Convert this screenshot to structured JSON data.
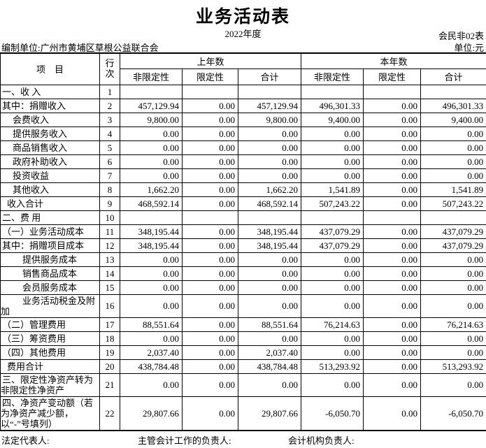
{
  "header": {
    "title": "业务活动表",
    "period": "2022年度",
    "form_code": "会民非02表",
    "prepared_by": "编制单位:广州市黄埔区草根公益联合会",
    "unit": "单位:元"
  },
  "table": {
    "col_headers": {
      "item": "项　目",
      "line_no": "行次",
      "prev_year": "上年数",
      "current_year": "本年数",
      "unrestricted": "非限定性",
      "restricted": "限定性",
      "total": "合计"
    },
    "rows": [
      {
        "item": "一、收 入",
        "line": "1",
        "indent": 0,
        "values": [
          "",
          "",
          "",
          "",
          "",
          ""
        ]
      },
      {
        "item": "其中：捐赠收入",
        "line": "2",
        "indent": 0,
        "values": [
          "457,129.94",
          "0.00",
          "457,129.94",
          "496,301.33",
          "0.00",
          "496,301.33"
        ]
      },
      {
        "item": "会费收入",
        "line": "3",
        "indent": 2,
        "values": [
          "9,800.00",
          "0.00",
          "9,800.00",
          "9,400.00",
          "0.00",
          "9,400.00"
        ]
      },
      {
        "item": "提供服务收入",
        "line": "4",
        "indent": 2,
        "values": [
          "0.00",
          "0.00",
          "0.00",
          "0.00",
          "0.00",
          "0.00"
        ]
      },
      {
        "item": "商品销售收入",
        "line": "5",
        "indent": 2,
        "values": [
          "0.00",
          "0.00",
          "0.00",
          "0.00",
          "0.00",
          "0.00"
        ]
      },
      {
        "item": "政府补助收入",
        "line": "6",
        "indent": 2,
        "values": [
          "0.00",
          "0.00",
          "0.00",
          "0.00",
          "0.00",
          "0.00"
        ]
      },
      {
        "item": "投资收益",
        "line": "7",
        "indent": 2,
        "values": [
          "0.00",
          "0.00",
          "0.00",
          "0.00",
          "0.00",
          "0.00"
        ]
      },
      {
        "item": "其他收入",
        "line": "8",
        "indent": 2,
        "values": [
          "1,662.20",
          "0.00",
          "1,662.20",
          "1,541.89",
          "0.00",
          "1,541.89"
        ]
      },
      {
        "item": "收入合计",
        "line": "9",
        "indent": 1,
        "values": [
          "468,592.14",
          "0.00",
          "468,592.14",
          "507,243.22",
          "0.00",
          "507,243.22"
        ]
      },
      {
        "item": "二、费 用",
        "line": "10",
        "indent": 0,
        "values": [
          "",
          "",
          "",
          "",
          "",
          ""
        ]
      },
      {
        "item": "（一）业务活动成本",
        "line": "11",
        "indent": 0,
        "values": [
          "348,195.44",
          "0.00",
          "348,195.44",
          "437,079.29",
          "0.00",
          "437,079.29"
        ]
      },
      {
        "item": "其中：捐赠项目成本",
        "line": "12",
        "indent": 0,
        "values": [
          "348,195.44",
          "0.00",
          "348,195.44",
          "437,079.29",
          "0.00",
          "437,079.29"
        ]
      },
      {
        "item": "提供服务成本",
        "line": "13",
        "indent": 3,
        "values": [
          "0.00",
          "0.00",
          "0.00",
          "0.00",
          "0.00",
          "0.00"
        ]
      },
      {
        "item": "销售商品成本",
        "line": "14",
        "indent": 3,
        "values": [
          "0.00",
          "0.00",
          "0.00",
          "0.00",
          "0.00",
          "0.00"
        ]
      },
      {
        "item": "会员服务成本",
        "line": "15",
        "indent": 3,
        "values": [
          "0.00",
          "0.00",
          "0.00",
          "0.00",
          "0.00",
          "0.00"
        ]
      },
      {
        "item": "业务活动税金及附加",
        "line": "16",
        "indent": 3,
        "values": [
          "0.00",
          "0.00",
          "0.00",
          "0.00",
          "0.00",
          "0.00"
        ]
      },
      {
        "item": "（二）管理费用",
        "line": "17",
        "indent": 0,
        "values": [
          "88,551.64",
          "0.00",
          "88,551.64",
          "76,214.63",
          "0.00",
          "76,214.63"
        ]
      },
      {
        "item": "（三）筹资费用",
        "line": "18",
        "indent": 0,
        "values": [
          "0.00",
          "0.00",
          "0.00",
          "0.00",
          "0.00",
          "0.00"
        ]
      },
      {
        "item": "（四）其他费用",
        "line": "19",
        "indent": 0,
        "values": [
          "2,037.40",
          "0.00",
          "2,037.40",
          "0.00",
          "0.00",
          "0.00"
        ]
      },
      {
        "item": "费用合计",
        "line": "20",
        "indent": 1,
        "values": [
          "438,784.48",
          "0.00",
          "438,784.48",
          "513,293.92",
          "0.00",
          "513,293.92"
        ]
      },
      {
        "item": "三、限定性净资产转为非限定性净资产",
        "line": "21",
        "indent": 0,
        "values": [
          "0.00",
          "0.00",
          "0.00",
          "0.00",
          "0.00",
          "0.00"
        ]
      },
      {
        "item": "四、净资产变动额（若为净资产减少额，以“-”号填列）",
        "line": "22",
        "indent": 0,
        "values": [
          "29,807.66",
          "0.00",
          "29,807.66",
          "-6,050.70",
          "0.00",
          "-6,050.70"
        ]
      }
    ]
  },
  "footer": {
    "legal_representative": "法定代表人:",
    "accounting_supervisor": "主管会计工作的负责人:",
    "accounting_agency_head": "会计机构负责人:"
  }
}
